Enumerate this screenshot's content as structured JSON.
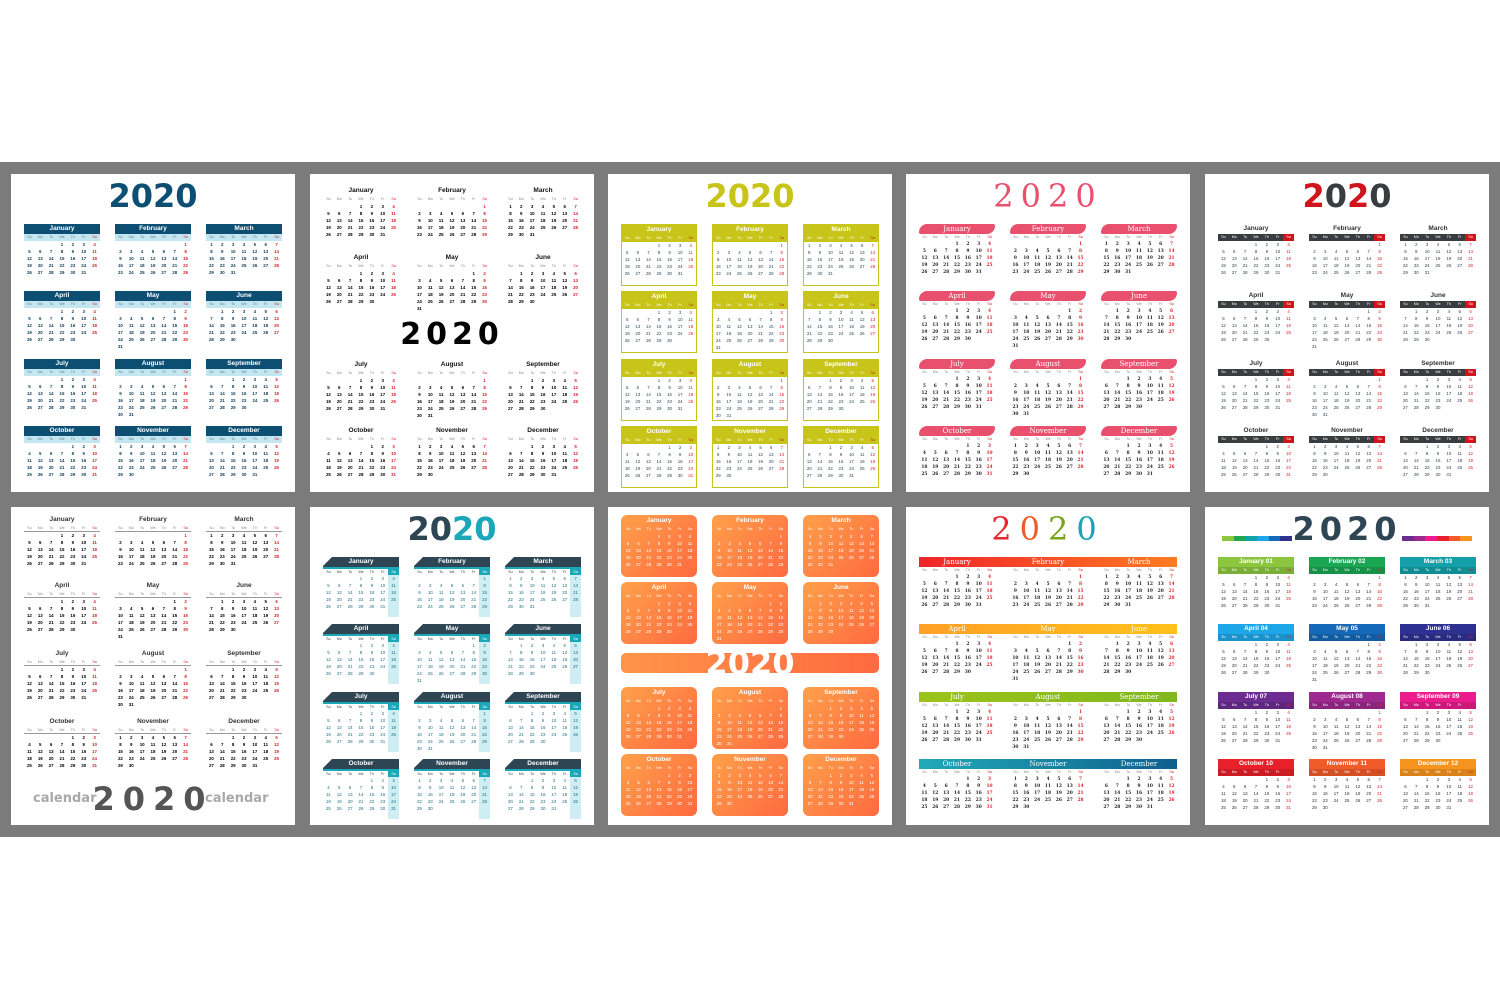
{
  "weekdays": [
    "Su",
    "Mo",
    "Tu",
    "We",
    "Th",
    "Fr",
    "Sa"
  ],
  "months": [
    {
      "name": "January",
      "first_weekday": 3,
      "days": 31
    },
    {
      "name": "February",
      "first_weekday": 6,
      "days": 29
    },
    {
      "name": "March",
      "first_weekday": 0,
      "days": 31
    },
    {
      "name": "April",
      "first_weekday": 3,
      "days": 30
    },
    {
      "name": "May",
      "first_weekday": 5,
      "days": 31
    },
    {
      "name": "June",
      "first_weekday": 1,
      "days": 30
    },
    {
      "name": "July",
      "first_weekday": 3,
      "days": 31
    },
    {
      "name": "August",
      "first_weekday": 6,
      "days": 31
    },
    {
      "name": "September",
      "first_weekday": 2,
      "days": 30
    },
    {
      "name": "October",
      "first_weekday": 4,
      "days": 31
    },
    {
      "name": "November",
      "first_weekday": 0,
      "days": 30
    },
    {
      "name": "December",
      "first_weekday": 2,
      "days": 31
    }
  ],
  "panels": [
    {
      "style": "s1",
      "layout": "A",
      "title": "2020",
      "title_colors": [
        "#0d4f73"
      ]
    },
    {
      "style": "s2",
      "layout": "mid",
      "title": "2020",
      "title_colors": [
        "#000000"
      ]
    },
    {
      "style": "s3",
      "layout": "A",
      "title": "2020",
      "title_colors": [
        "#c8c41a"
      ]
    },
    {
      "style": "s4",
      "layout": "A",
      "title": "2020",
      "title_colors": [
        "#e8506e"
      ]
    },
    {
      "style": "s5",
      "layout": "A",
      "title": "2020",
      "title_colors": [
        "#d0141c",
        "#3a3d40"
      ]
    },
    {
      "style": "s6",
      "layout": "bottom",
      "title": "2020",
      "title_colors": [
        "#555555"
      ],
      "side_label": "calendar"
    },
    {
      "style": "s7",
      "layout": "A",
      "title": "2020",
      "title_colors": [
        "#2e4553",
        "#2e4553",
        "#1aa7b8",
        "#1aa7b8"
      ]
    },
    {
      "style": "s8",
      "layout": "band",
      "title": "2020",
      "title_colors": [
        "#ffffff"
      ]
    },
    {
      "style": "s9",
      "layout": "A",
      "title": "2020",
      "title_colors": [
        "#e8262c",
        "#f05a28",
        "#7aa51c",
        "#18a3b8"
      ],
      "row_colors": [
        [
          "#f0242a",
          "#ff7b22"
        ],
        [
          "#ffa028",
          "#ffc21a"
        ],
        [
          "#9cc31b",
          "#7fb81e"
        ],
        [
          "#20aab8",
          "#0f5f8c"
        ]
      ]
    },
    {
      "style": "s10",
      "layout": "A",
      "title": "2020",
      "title_colors": [
        "#2e4553"
      ],
      "month_labels": [
        "January 01",
        "February 02",
        "March 03",
        "April 04",
        "May 05",
        "June 06",
        "July 07",
        "August 08",
        "September 09",
        "October 10",
        "November 11",
        "December 12"
      ],
      "month_colors": [
        "#8cc63f",
        "#1aa653",
        "#14a0a8",
        "#1ea7e8",
        "#1569b8",
        "#2e3192",
        "#6c2c91",
        "#9e2a8f",
        "#ec1c8c",
        "#e8202a",
        "#f15a29",
        "#f7941d"
      ]
    }
  ]
}
